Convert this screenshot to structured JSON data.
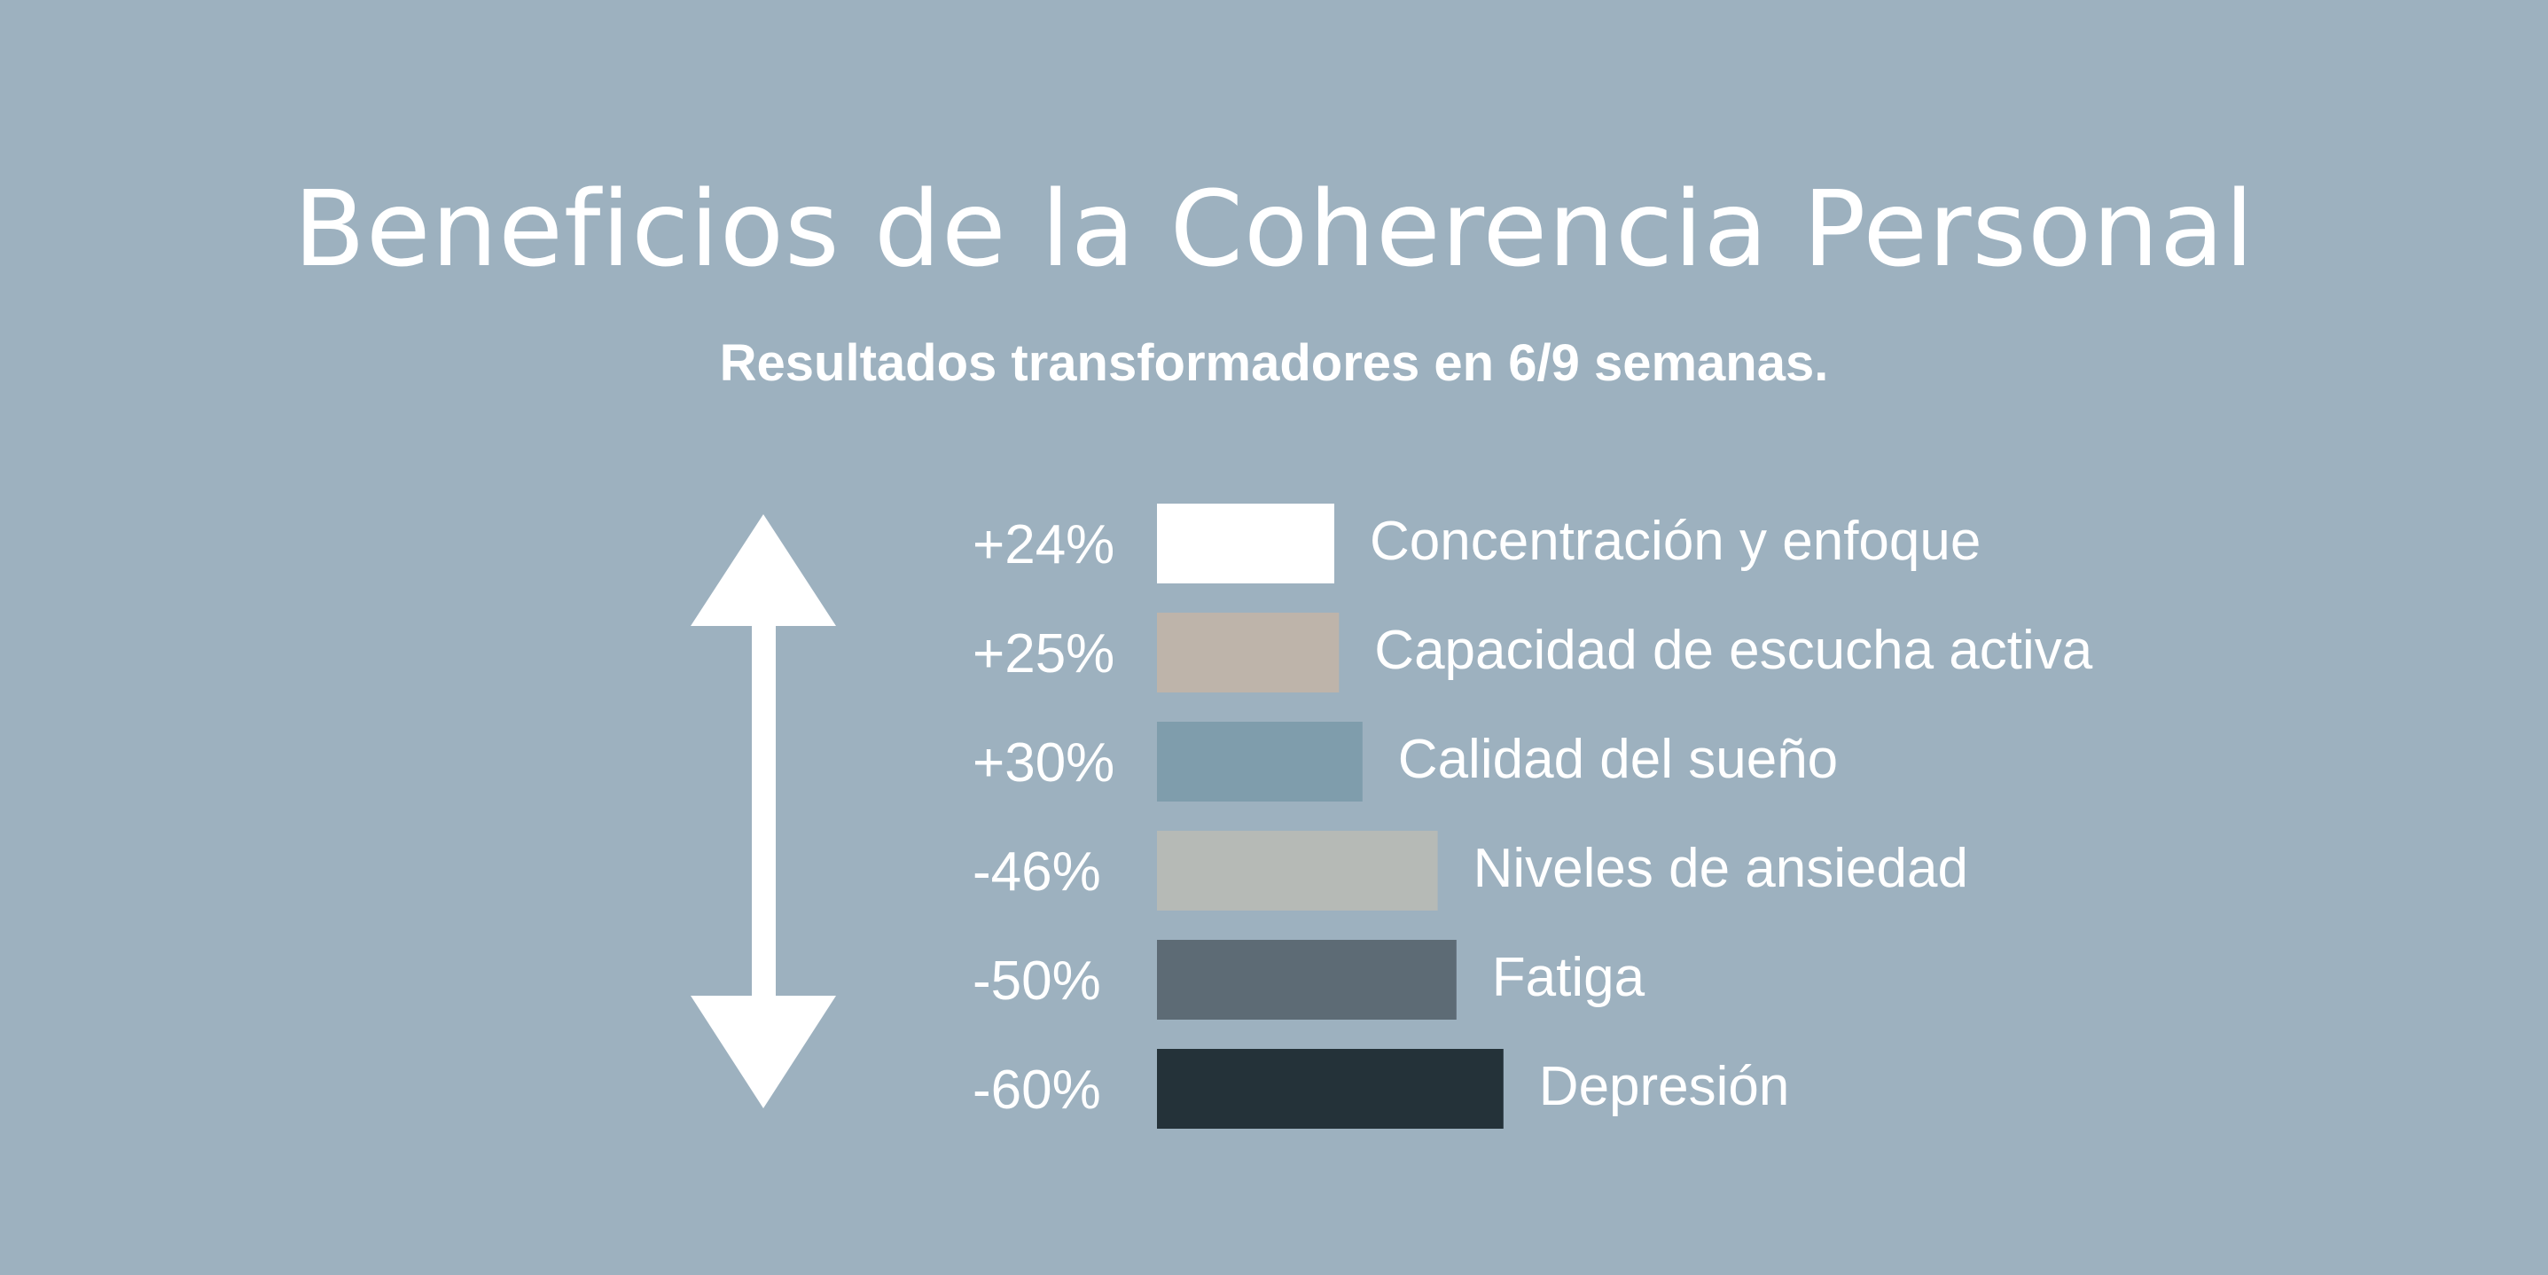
{
  "title": "Beneficios de la Coherencia Personal",
  "subtitle": "Resultados transformadores en 6/9 semanas.",
  "colors": {
    "background": "#9db1bf",
    "text": "#ffffff",
    "arrow": "#ffffff"
  },
  "icons": {
    "indicator": "double-headed-vertical-arrow"
  },
  "chart_data": {
    "type": "bar",
    "orientation": "horizontal",
    "title": "Beneficios de la Coherencia Personal",
    "subtitle": "Resultados transformadores en 6/9 semanas.",
    "xlabel": "",
    "ylabel": "",
    "grid": false,
    "categories": [
      "Concentración y enfoque",
      "Capacidad de escucha activa",
      "Calidad del sueño",
      "Niveles de ansiedad",
      "Fatiga",
      "Depresión"
    ],
    "value_labels": [
      "+24%",
      "+25%",
      "+30%",
      "-46%",
      "-50%",
      "-60%"
    ],
    "values": [
      24,
      25,
      30,
      -46,
      -50,
      -60
    ],
    "bar_colors": [
      "#ffffff",
      "#beb4aa",
      "#7f9dac",
      "#b6bab6",
      "#5d6b75",
      "#243239"
    ]
  }
}
